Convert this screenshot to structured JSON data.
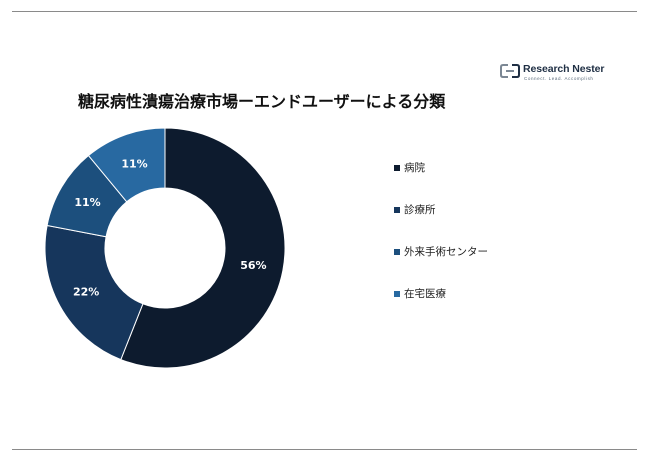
{
  "header": {
    "title": "糖尿病性潰瘍治療市場ーエンドユーザーによる分類"
  },
  "logo": {
    "name": "Research Nester",
    "tagline": "Connect. Lead. Accomplish"
  },
  "colors": {
    "slice_1": "#0d1b2e",
    "slice_2": "#16365c",
    "slice_3": "#1c4f7d",
    "slice_4": "#2869a1",
    "rule": "#8a8a8a"
  },
  "chart_data": {
    "type": "pie",
    "variant": "donut",
    "title": "糖尿病性潰瘍治療市場ーエンドユーザーによる分類",
    "categories": [
      "病院",
      "診療所",
      "外来手術センター",
      "在宅医療"
    ],
    "values": [
      56,
      22,
      11,
      11
    ],
    "labels": [
      "56%",
      "22%",
      "11%",
      "11%"
    ],
    "legend_position": "right",
    "start_angle": "12 o'clock",
    "direction": "clockwise"
  }
}
